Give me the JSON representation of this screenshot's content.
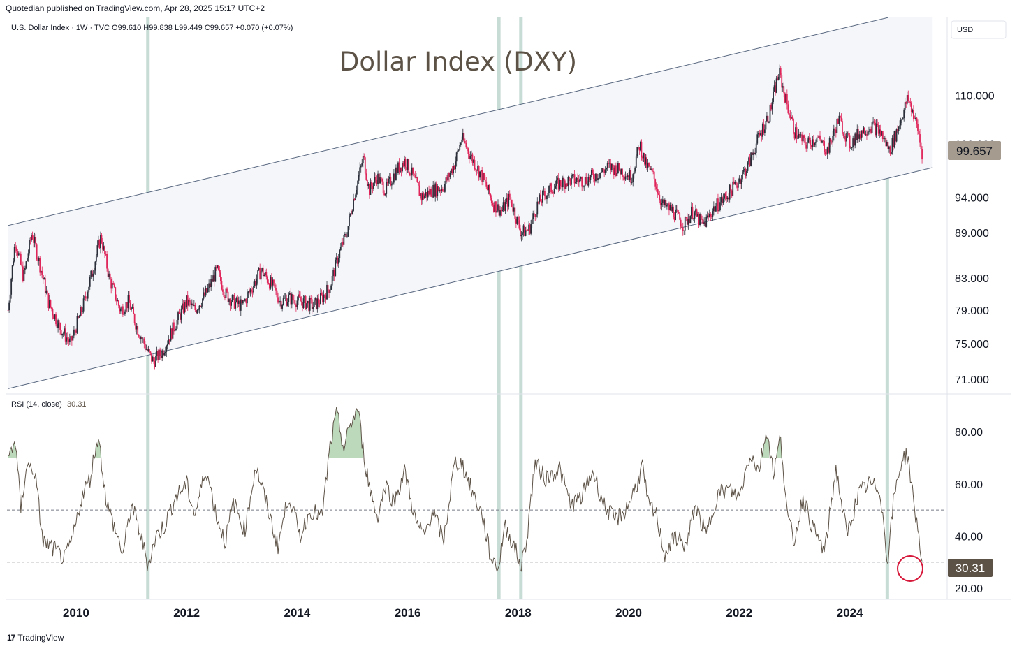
{
  "publisher_line": "Quotedian published on TradingView.com, Apr 28, 2025 15:17 UTC+2",
  "symbol_line": "U.S. Dollar Index · 1W · TVC  O99.610  H99.838  L99.449  C99.657  +0.070 (+0.07%)",
  "currency_label": "USD",
  "price_label": "99.657",
  "rsi_header": "RSI (14, close)",
  "rsi_value": "30.31",
  "footer_brand": "TradingView",
  "colors": {
    "candle_up": "#2a2e39",
    "candle_down": "#e0255a",
    "rsi_line": "#5d5246",
    "channel_fill": "#f4f6f9",
    "channel_line": "#56657e",
    "vertical_band": "#c8dcd6",
    "price_badge": "#a59c8f",
    "rsi_badge": "#5d5246",
    "overbought_fill": "#6aaa6a",
    "circle": "#d6183a"
  },
  "chart_data": [
    {
      "type": "candlestick",
      "title": "Dollar Index (DXY)",
      "xlabel": "",
      "ylabel": "",
      "yscale": "log",
      "ylim": [
        69.5,
        124
      ],
      "ticks_y": [
        "110.000",
        "102.000",
        "94.000",
        "89.000",
        "83.000",
        "79.000",
        "75.000",
        "71.000"
      ],
      "ticks_x": [
        "2010",
        "2012",
        "2014",
        "2016",
        "2018",
        "2020",
        "2022",
        "2024"
      ],
      "x_range": [
        2008.75,
        2025.75
      ],
      "last_close": 99.657,
      "path": [
        [
          2008.77,
          79
        ],
        [
          2008.9,
          88
        ],
        [
          2009.05,
          83
        ],
        [
          2009.2,
          89
        ],
        [
          2009.3,
          86
        ],
        [
          2009.5,
          80
        ],
        [
          2009.7,
          77
        ],
        [
          2009.9,
          75
        ],
        [
          2010.0,
          77
        ],
        [
          2010.15,
          80
        ],
        [
          2010.3,
          84
        ],
        [
          2010.45,
          88.5
        ],
        [
          2010.6,
          83
        ],
        [
          2010.8,
          79
        ],
        [
          2010.95,
          80
        ],
        [
          2011.1,
          77
        ],
        [
          2011.3,
          74
        ],
        [
          2011.4,
          73
        ],
        [
          2011.55,
          74
        ],
        [
          2011.7,
          76
        ],
        [
          2011.85,
          78
        ],
        [
          2012.0,
          80
        ],
        [
          2012.15,
          79
        ],
        [
          2012.35,
          81
        ],
        [
          2012.55,
          84
        ],
        [
          2012.7,
          81
        ],
        [
          2012.85,
          80
        ],
        [
          2013.0,
          79.5
        ],
        [
          2013.2,
          82
        ],
        [
          2013.35,
          84
        ],
        [
          2013.55,
          82
        ],
        [
          2013.7,
          80
        ],
        [
          2013.85,
          80.5
        ],
        [
          2014.1,
          80
        ],
        [
          2014.3,
          79.5
        ],
        [
          2014.45,
          80.5
        ],
        [
          2014.6,
          82
        ],
        [
          2014.75,
          86
        ],
        [
          2014.9,
          89
        ],
        [
          2015.0,
          93
        ],
        [
          2015.2,
          100
        ],
        [
          2015.3,
          95
        ],
        [
          2015.45,
          97
        ],
        [
          2015.6,
          95
        ],
        [
          2015.8,
          98
        ],
        [
          2015.95,
          99.5
        ],
        [
          2016.1,
          97
        ],
        [
          2016.25,
          94
        ],
        [
          2016.45,
          95
        ],
        [
          2016.65,
          95.5
        ],
        [
          2016.85,
          99
        ],
        [
          2016.98,
          103
        ],
        [
          2017.15,
          100
        ],
        [
          2017.35,
          97
        ],
        [
          2017.55,
          93
        ],
        [
          2017.7,
          92
        ],
        [
          2017.85,
          94
        ],
        [
          2018.05,
          89
        ],
        [
          2018.2,
          89.5
        ],
        [
          2018.35,
          93
        ],
        [
          2018.55,
          95
        ],
        [
          2018.75,
          96
        ],
        [
          2018.95,
          96.5
        ],
        [
          2019.2,
          96.5
        ],
        [
          2019.45,
          97.5
        ],
        [
          2019.65,
          98.5
        ],
        [
          2019.85,
          98
        ],
        [
          2020.05,
          97
        ],
        [
          2020.2,
          102
        ],
        [
          2020.3,
          99
        ],
        [
          2020.45,
          97
        ],
        [
          2020.6,
          93
        ],
        [
          2020.8,
          92
        ],
        [
          2021.0,
          90
        ],
        [
          2021.15,
          92
        ],
        [
          2021.35,
          90
        ],
        [
          2021.55,
          92.5
        ],
        [
          2021.75,
          94
        ],
        [
          2021.95,
          96
        ],
        [
          2022.15,
          98.5
        ],
        [
          2022.35,
          103
        ],
        [
          2022.55,
          107
        ],
        [
          2022.72,
          114
        ],
        [
          2022.85,
          109
        ],
        [
          2023.0,
          104
        ],
        [
          2023.2,
          102
        ],
        [
          2023.4,
          103
        ],
        [
          2023.6,
          101
        ],
        [
          2023.8,
          106
        ],
        [
          2024.0,
          102
        ],
        [
          2024.2,
          104
        ],
        [
          2024.4,
          105
        ],
        [
          2024.55,
          104
        ],
        [
          2024.72,
          101
        ],
        [
          2024.85,
          104
        ],
        [
          2025.0,
          108
        ],
        [
          2025.05,
          109.5
        ],
        [
          2025.15,
          107
        ],
        [
          2025.25,
          103.5
        ],
        [
          2025.32,
          99.66
        ]
      ]
    },
    {
      "type": "line",
      "title": "RSI (14, close)",
      "xlabel": "",
      "ylabel": "",
      "ylim": [
        16,
        94
      ],
      "ticks_y": [
        "80.00",
        "60.00",
        "40.00",
        "20.00"
      ],
      "levels": [
        70,
        50,
        30
      ],
      "last_value": 30.31,
      "path": [
        [
          2008.77,
          70
        ],
        [
          2008.9,
          77
        ],
        [
          2009.0,
          50
        ],
        [
          2009.1,
          67
        ],
        [
          2009.25,
          65
        ],
        [
          2009.4,
          38
        ],
        [
          2009.6,
          35
        ],
        [
          2009.8,
          31
        ],
        [
          2009.95,
          40
        ],
        [
          2010.1,
          55
        ],
        [
          2010.25,
          62
        ],
        [
          2010.4,
          79
        ],
        [
          2010.55,
          53
        ],
        [
          2010.7,
          43
        ],
        [
          2010.85,
          33
        ],
        [
          2011.0,
          52
        ],
        [
          2011.15,
          42
        ],
        [
          2011.3,
          29
        ],
        [
          2011.45,
          40
        ],
        [
          2011.6,
          44
        ],
        [
          2011.8,
          55
        ],
        [
          2012.0,
          60
        ],
        [
          2012.15,
          48
        ],
        [
          2012.35,
          66
        ],
        [
          2012.55,
          47
        ],
        [
          2012.7,
          38
        ],
        [
          2012.85,
          53
        ],
        [
          2013.05,
          42
        ],
        [
          2013.25,
          67
        ],
        [
          2013.45,
          52
        ],
        [
          2013.65,
          36
        ],
        [
          2013.85,
          56
        ],
        [
          2014.05,
          40
        ],
        [
          2014.25,
          50
        ],
        [
          2014.45,
          47
        ],
        [
          2014.6,
          75
        ],
        [
          2014.72,
          87
        ],
        [
          2014.85,
          73
        ],
        [
          2014.95,
          82
        ],
        [
          2015.1,
          89
        ],
        [
          2015.2,
          72
        ],
        [
          2015.3,
          60
        ],
        [
          2015.45,
          47
        ],
        [
          2015.6,
          60
        ],
        [
          2015.75,
          53
        ],
        [
          2015.95,
          65
        ],
        [
          2016.15,
          45
        ],
        [
          2016.3,
          40
        ],
        [
          2016.45,
          50
        ],
        [
          2016.65,
          38
        ],
        [
          2016.85,
          68
        ],
        [
          2016.98,
          68
        ],
        [
          2017.15,
          58
        ],
        [
          2017.35,
          48
        ],
        [
          2017.5,
          32
        ],
        [
          2017.65,
          28
        ],
        [
          2017.75,
          44
        ],
        [
          2017.9,
          38
        ],
        [
          2018.05,
          28
        ],
        [
          2018.15,
          38
        ],
        [
          2018.3,
          68
        ],
        [
          2018.5,
          62
        ],
        [
          2018.75,
          66
        ],
        [
          2018.95,
          52
        ],
        [
          2019.15,
          55
        ],
        [
          2019.35,
          65
        ],
        [
          2019.55,
          52
        ],
        [
          2019.75,
          46
        ],
        [
          2019.95,
          50
        ],
        [
          2020.15,
          60
        ],
        [
          2020.25,
          67
        ],
        [
          2020.35,
          52
        ],
        [
          2020.5,
          48
        ],
        [
          2020.65,
          33
        ],
        [
          2020.85,
          40
        ],
        [
          2021.05,
          36
        ],
        [
          2021.2,
          52
        ],
        [
          2021.4,
          40
        ],
        [
          2021.6,
          56
        ],
        [
          2021.8,
          58
        ],
        [
          2022.0,
          55
        ],
        [
          2022.2,
          72
        ],
        [
          2022.35,
          65
        ],
        [
          2022.5,
          81
        ],
        [
          2022.62,
          64
        ],
        [
          2022.75,
          78
        ],
        [
          2022.88,
          46
        ],
        [
          2023.0,
          38
        ],
        [
          2023.15,
          55
        ],
        [
          2023.35,
          42
        ],
        [
          2023.55,
          34
        ],
        [
          2023.75,
          66
        ],
        [
          2023.95,
          40
        ],
        [
          2024.15,
          56
        ],
        [
          2024.35,
          60
        ],
        [
          2024.55,
          58
        ],
        [
          2024.68,
          30
        ],
        [
          2024.8,
          55
        ],
        [
          2024.95,
          70
        ],
        [
          2025.05,
          71
        ],
        [
          2025.15,
          54
        ],
        [
          2025.25,
          40
        ],
        [
          2025.32,
          30.31
        ]
      ]
    }
  ],
  "vertical_markers": [
    2011.3,
    2017.65,
    2018.05,
    2024.68
  ],
  "channel": {
    "upper": [
      [
        2008.77,
        90
      ],
      [
        2024.7,
        124
      ]
    ],
    "lower": [
      [
        2008.77,
        70
      ],
      [
        2025.5,
        98.4
      ]
    ]
  }
}
